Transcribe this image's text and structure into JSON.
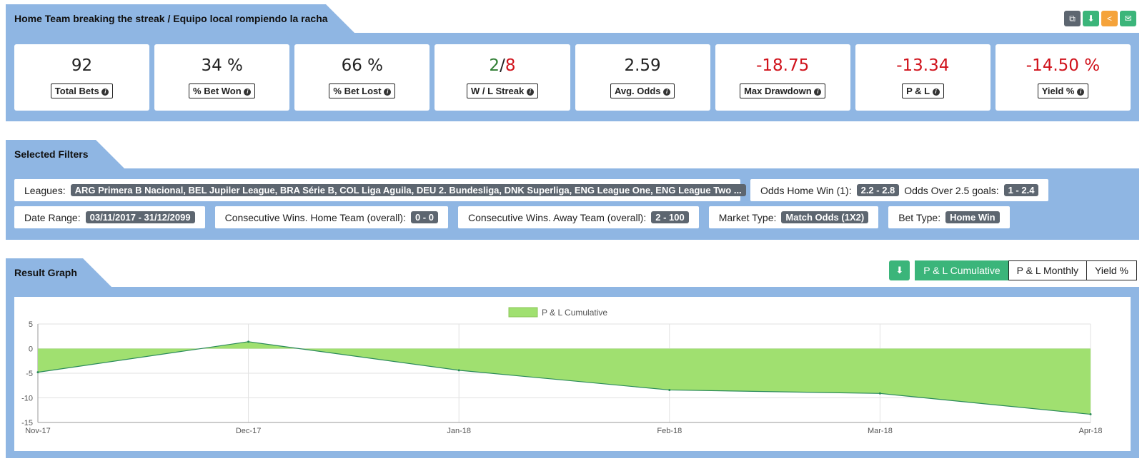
{
  "header": {
    "title": "Home Team breaking the streak / Equipo local rompiendo la racha",
    "icons": [
      {
        "name": "copy-icon",
        "glyph": "⧉",
        "color": "#5d6670"
      },
      {
        "name": "download-icon",
        "glyph": "⬇",
        "color": "#3bb57a"
      },
      {
        "name": "share-icon",
        "glyph": "≺",
        "color": "#f5a33b"
      },
      {
        "name": "email-icon",
        "glyph": "✉",
        "color": "#3bb57a"
      }
    ]
  },
  "stats": {
    "total_bets": {
      "value": "92",
      "label": "Total Bets"
    },
    "bet_won": {
      "value": "34 %",
      "label": "% Bet Won"
    },
    "bet_lost": {
      "value": "66 %",
      "label": "% Bet Lost"
    },
    "streak": {
      "win": "2",
      "sep": "/",
      "loss": "8",
      "label": "W / L Streak"
    },
    "avg_odds": {
      "value": "2.59",
      "label": "Avg. Odds"
    },
    "max_drawdown": {
      "value": "-18.75",
      "label": "Max Drawdown"
    },
    "pl": {
      "value": "-13.34",
      "label": "P & L"
    },
    "yield": {
      "value": "-14.50 %",
      "label": "Yield %"
    }
  },
  "filters": {
    "title": "Selected Filters",
    "leagues": {
      "label": "Leagues:",
      "value": "ARG Primera B Nacional, BEL Jupiler League, BRA Série B, COL Liga Aguila, DEU 2. Bundesliga, DNK Superliga, ENG League One, ENG League Two ..."
    },
    "odds_home": {
      "label": "Odds Home Win (1):",
      "value": "2.2 - 2.8"
    },
    "odds_over": {
      "label": "Odds Over 2.5 goals:",
      "value": "1 - 2.4"
    },
    "date_range": {
      "label": "Date Range:",
      "value": "03/11/2017 - 31/12/2099"
    },
    "cons_home": {
      "label": "Consecutive Wins. Home Team (overall):",
      "value": "0 - 0"
    },
    "cons_away": {
      "label": "Consecutive Wins. Away Team (overall):",
      "value": "2 - 100"
    },
    "market_type": {
      "label": "Market Type:",
      "value": "Match Odds (1X2)"
    },
    "bet_type": {
      "label": "Bet Type:",
      "value": "Home Win"
    }
  },
  "graph": {
    "title": "Result Graph",
    "buttons": {
      "cumulative": "P & L Cumulative",
      "monthly": "P & L Monthly",
      "yield": "Yield %"
    },
    "active": "cumulative"
  },
  "chart_data": {
    "type": "area",
    "x": [
      "Nov-17",
      "Dec-17",
      "Jan-18",
      "Feb-18",
      "Mar-18",
      "Apr-18"
    ],
    "series": [
      {
        "name": "P & L Cumulative",
        "values": [
          -4.8,
          1.4,
          -4.4,
          -8.4,
          -9.1,
          -13.34
        ]
      }
    ],
    "ylim": [
      -15,
      5
    ],
    "yticks": [
      5,
      0,
      -5,
      -10,
      -15
    ],
    "grid": true,
    "legend": "top",
    "colors": {
      "fill": "#a0e070",
      "line": "#2a8a5a"
    }
  }
}
